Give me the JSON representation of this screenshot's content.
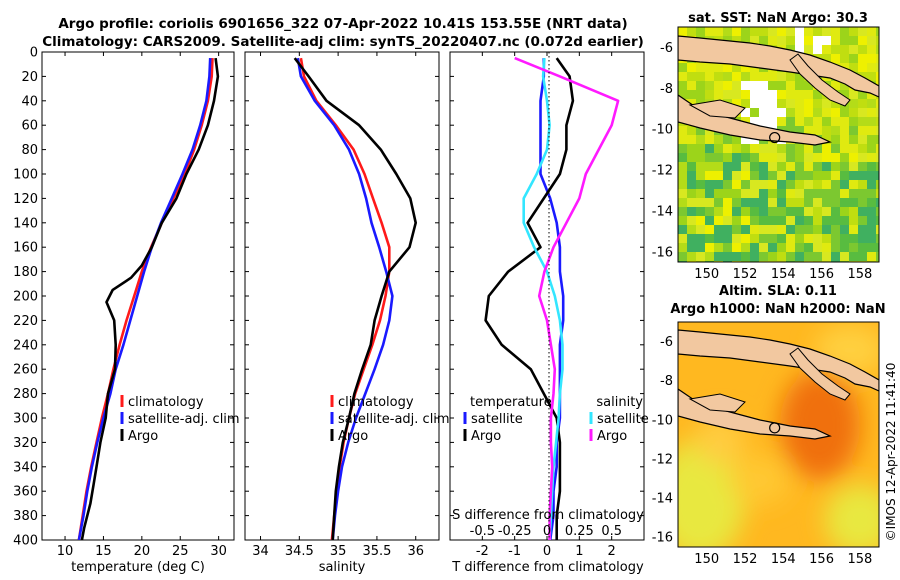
{
  "title_line1": "Argo profile: coriolis 6901656_322 07-Apr-2022 10.41S 153.55E (NRT data)",
  "title_line2": "Climatology: CARS2009. Satellite-adj clim: synTS_20220407.nc (0.072d earlier)",
  "footer": "©IMOS 12-Apr-2022 11:41:40",
  "colors": {
    "climatology": "#ff1a1a",
    "satellite": "#1a1aff",
    "argo": "#000000",
    "temp_sat": "#33e6ff",
    "sal_argo": "#ff1aff"
  },
  "chart_data": [
    {
      "type": "line",
      "name": "temperature",
      "xlabel": "temperature (deg C)",
      "ylabel": "",
      "xlim": [
        7,
        32
      ],
      "ylim": [
        400,
        0
      ],
      "xticks": [
        10,
        15,
        20,
        25,
        30
      ],
      "yticks": [
        0,
        20,
        40,
        60,
        80,
        100,
        120,
        140,
        160,
        180,
        200,
        220,
        240,
        260,
        280,
        300,
        320,
        340,
        360,
        380,
        400
      ],
      "legend": [
        "climatology",
        "satellite-adj. clim",
        "Argo"
      ],
      "series": [
        {
          "name": "climatology",
          "color": "#ff1a1a",
          "x": [
            29.2,
            29.1,
            28.6,
            27.8,
            26.8,
            25.6,
            24.1,
            22.6,
            21.2,
            20.0,
            19.0,
            18.0,
            17.1,
            16.3,
            15.6,
            14.8,
            14.1,
            13.4,
            12.8,
            12.3,
            11.8
          ],
          "y": [
            5,
            20,
            40,
            60,
            80,
            100,
            120,
            140,
            160,
            180,
            200,
            220,
            240,
            260,
            280,
            300,
            320,
            340,
            360,
            380,
            400
          ]
        },
        {
          "name": "satellite-adj. clim",
          "color": "#1a1aff",
          "x": [
            28.9,
            28.8,
            28.4,
            27.6,
            26.6,
            25.3,
            23.9,
            22.5,
            21.3,
            20.3,
            19.4,
            18.5,
            17.6,
            16.6,
            15.9,
            15.0,
            14.2,
            13.5,
            12.9,
            12.4,
            11.8
          ],
          "y": [
            5,
            20,
            40,
            60,
            80,
            100,
            120,
            140,
            160,
            180,
            200,
            220,
            240,
            260,
            280,
            300,
            320,
            340,
            360,
            380,
            400
          ]
        },
        {
          "name": "Argo",
          "color": "#000000",
          "x": [
            29.6,
            29.9,
            29.4,
            28.6,
            27.4,
            25.8,
            24.5,
            22.6,
            21.3,
            20.0,
            18.6,
            16.2,
            15.4,
            16.4,
            16.6,
            16.5,
            15.6,
            15.3,
            14.6,
            14.1,
            13.7,
            13.3,
            12.9,
            12.5,
            12.2
          ],
          "y": [
            5,
            20,
            40,
            60,
            80,
            100,
            120,
            140,
            160,
            175,
            185,
            195,
            205,
            220,
            240,
            260,
            280,
            300,
            320,
            340,
            355,
            370,
            380,
            390,
            400
          ]
        }
      ]
    },
    {
      "type": "line",
      "name": "salinity",
      "xlabel": "salinity",
      "ylabel": "",
      "xlim": [
        33.8,
        36.3
      ],
      "ylim": [
        400,
        0
      ],
      "xticks": [
        34,
        34.5,
        35,
        35.5,
        36
      ],
      "legend": [
        "climatology",
        "satellite-adj. clim",
        "Argo"
      ],
      "series": [
        {
          "name": "climatology",
          "color": "#ff1a1a",
          "x": [
            34.52,
            34.56,
            34.72,
            34.97,
            35.2,
            35.34,
            35.45,
            35.56,
            35.66,
            35.66,
            35.61,
            35.54,
            35.44,
            35.33,
            35.22,
            35.14,
            35.07,
            35.02,
            34.98,
            34.95,
            34.92
          ],
          "y": [
            5,
            20,
            40,
            60,
            80,
            100,
            120,
            140,
            160,
            180,
            200,
            220,
            240,
            260,
            280,
            300,
            320,
            340,
            360,
            380,
            400
          ]
        },
        {
          "name": "satellite-adj. clim",
          "color": "#1a1aff",
          "x": [
            34.48,
            34.52,
            34.7,
            34.95,
            35.14,
            35.27,
            35.36,
            35.43,
            35.53,
            35.62,
            35.7,
            35.66,
            35.58,
            35.47,
            35.35,
            35.23,
            35.13,
            35.05,
            35.0,
            34.96,
            34.93
          ],
          "y": [
            5,
            20,
            40,
            60,
            80,
            100,
            120,
            140,
            160,
            180,
            200,
            220,
            240,
            260,
            280,
            300,
            320,
            340,
            360,
            380,
            400
          ]
        },
        {
          "name": "Argo",
          "color": "#000000",
          "x": [
            34.44,
            34.62,
            34.85,
            35.27,
            35.55,
            35.75,
            35.93,
            36.0,
            35.92,
            35.66,
            35.56,
            35.47,
            35.42,
            35.31,
            35.21,
            35.14,
            35.06,
            35.01,
            34.97,
            34.95,
            34.93
          ],
          "y": [
            5,
            20,
            40,
            60,
            80,
            100,
            120,
            140,
            160,
            180,
            200,
            220,
            240,
            260,
            280,
            300,
            320,
            340,
            360,
            380,
            400
          ]
        }
      ]
    },
    {
      "type": "line",
      "name": "difference",
      "xlabel": "T difference from climatology",
      "ylabel": "",
      "xlim": [
        -3,
        3
      ],
      "ylim": [
        400,
        0
      ],
      "xticks": [
        -2,
        -1,
        0,
        1,
        2
      ],
      "secondary_axis": {
        "label": "S difference from climatology",
        "ticks": [
          "-0.5",
          "-0.25",
          "0",
          "0.25",
          "0.5"
        ]
      },
      "legend": [
        "temperature",
        "satellite",
        "Argo",
        "salinity",
        "satellite",
        "Argo"
      ],
      "series": [
        {
          "name": "temperature satellite",
          "color": "#1a1aff",
          "x": [
            -0.1,
            -0.1,
            -0.2,
            -0.2,
            -0.2,
            -0.2,
            0.1,
            0.3,
            0.4,
            0.4,
            0.5,
            0.5,
            0.4,
            0.4,
            0.4,
            0.4,
            0.3,
            0.3,
            0.2,
            0.2,
            0.1
          ],
          "y": [
            5,
            20,
            40,
            60,
            80,
            100,
            120,
            140,
            160,
            180,
            200,
            220,
            240,
            260,
            280,
            300,
            320,
            340,
            360,
            380,
            400
          ]
        },
        {
          "name": "temperature Argo",
          "color": "#000000",
          "x": [
            0.3,
            0.7,
            0.8,
            0.6,
            0.6,
            0.4,
            -0.1,
            -0.6,
            -0.2,
            -1.2,
            -1.8,
            -1.9,
            -1.4,
            -0.5,
            -0.1,
            0.3,
            0.4,
            0.4,
            0.4,
            0.3,
            0.3
          ],
          "y": [
            5,
            20,
            40,
            60,
            80,
            100,
            120,
            140,
            160,
            180,
            200,
            220,
            240,
            260,
            280,
            300,
            320,
            340,
            360,
            380,
            400
          ]
        },
        {
          "name": "salinity satellite",
          "color": "#33e6ff",
          "x": [
            -0.02,
            -0.03,
            0.0,
            0.02,
            0.0,
            -0.08,
            -0.18,
            -0.18,
            -0.1,
            0.0,
            0.06,
            0.1,
            0.12,
            0.12,
            0.1,
            0.09,
            0.07,
            0.05,
            0.04,
            0.03,
            0.02
          ],
          "y": [
            5,
            20,
            40,
            60,
            80,
            100,
            120,
            140,
            160,
            180,
            200,
            220,
            240,
            260,
            280,
            300,
            320,
            340,
            360,
            380,
            400
          ]
        },
        {
          "name": "salinity Argo",
          "color": "#ff1aff",
          "x": [
            -0.25,
            0.1,
            0.55,
            0.5,
            0.4,
            0.3,
            0.25,
            0.15,
            0.05,
            -0.02,
            -0.06,
            0.0,
            0.03,
            0.06,
            0.05,
            0.03,
            0.03,
            0.04,
            0.03,
            0.02,
            0.02
          ],
          "y": [
            5,
            20,
            40,
            60,
            80,
            100,
            120,
            140,
            160,
            180,
            200,
            220,
            240,
            260,
            280,
            300,
            320,
            340,
            360,
            380,
            400
          ]
        }
      ]
    },
    {
      "type": "heatmap",
      "name": "sat-sst-map",
      "title": "sat. SST: NaN Argo: 30.3",
      "xlim": [
        148.5,
        159
      ],
      "ylim": [
        -16.5,
        -5
      ],
      "xticks": [
        150,
        152,
        154,
        156,
        158
      ],
      "yticks": [
        -6,
        -8,
        -10,
        -12,
        -14,
        -16
      ],
      "marker": {
        "lon": 153.55,
        "lat": -10.41
      }
    },
    {
      "type": "heatmap",
      "name": "sla-map",
      "title_line1": "Altim. SLA: 0.11",
      "title_line2": "Argo h1000: NaN h2000: NaN",
      "xlim": [
        148.5,
        159
      ],
      "ylim": [
        -16.5,
        -5
      ],
      "xticks": [
        150,
        152,
        154,
        156,
        158
      ],
      "yticks": [
        -6,
        -8,
        -10,
        -12,
        -14,
        -16
      ],
      "marker": {
        "lon": 153.55,
        "lat": -10.41
      }
    }
  ]
}
